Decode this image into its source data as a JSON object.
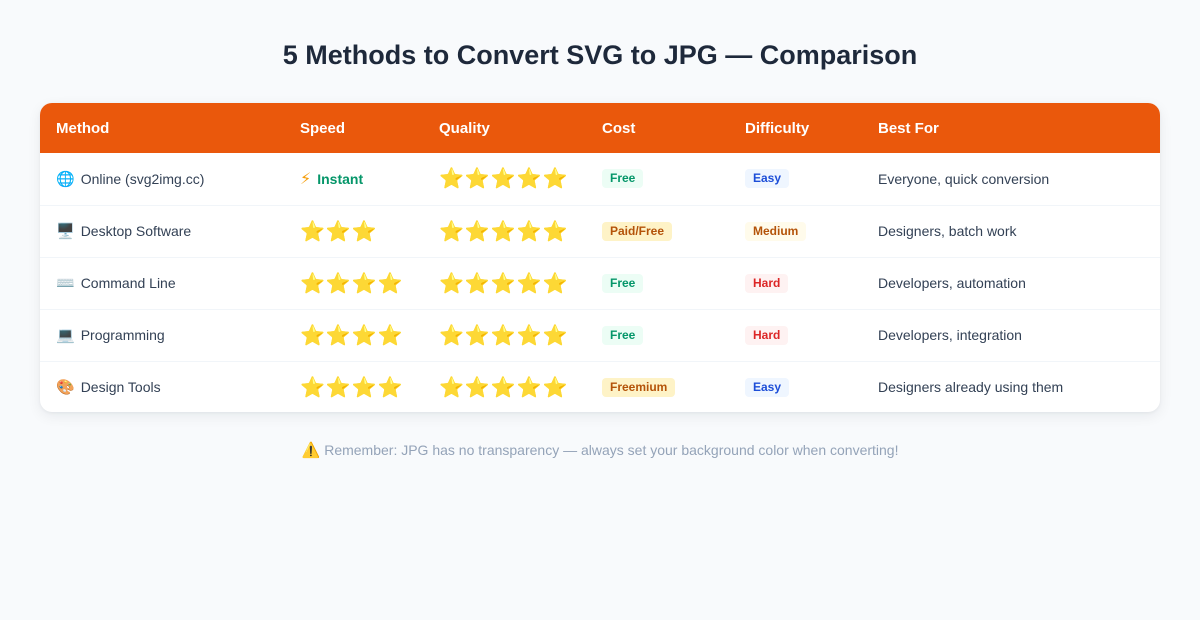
{
  "title": "5 Methods to Convert SVG to JPG — Comparison",
  "columns": [
    "Method",
    "Speed",
    "Quality",
    "Cost",
    "Difficulty",
    "Best For"
  ],
  "rows": [
    {
      "icon": "globe-icon",
      "icon_glyph": "🌐",
      "method": "Online (svg2img.cc)",
      "speed_text": "Instant",
      "speed_icon": "⚡",
      "speed_stars": "",
      "quality_stars": "⭐⭐⭐⭐⭐",
      "cost": "Free",
      "cost_color": "#059669",
      "difficulty": "Easy",
      "difficulty_color": "#1d4ed8",
      "best_for": "Everyone, quick conversion"
    },
    {
      "icon": "desktop-icon",
      "icon_glyph": "🖥️",
      "method": "Desktop Software",
      "speed_text": "",
      "speed_icon": "",
      "speed_stars": "⭐⭐⭐",
      "quality_stars": "⭐⭐⭐⭐⭐",
      "cost": "Paid/Free",
      "cost_color": "#b45309",
      "difficulty": "Medium",
      "difficulty_color": "#b45309",
      "best_for": "Designers, batch work"
    },
    {
      "icon": "keyboard-icon",
      "icon_glyph": "⌨️",
      "method": "Command Line",
      "speed_text": "",
      "speed_icon": "",
      "speed_stars": "⭐⭐⭐⭐",
      "quality_stars": "⭐⭐⭐⭐⭐",
      "cost": "Free",
      "cost_color": "#059669",
      "difficulty": "Hard",
      "difficulty_color": "#dc2626",
      "best_for": "Developers, automation"
    },
    {
      "icon": "laptop-icon",
      "icon_glyph": "💻",
      "method": "Programming",
      "speed_text": "",
      "speed_icon": "",
      "speed_stars": "⭐⭐⭐⭐",
      "quality_stars": "⭐⭐⭐⭐⭐",
      "cost": "Free",
      "cost_color": "#059669",
      "difficulty": "Hard",
      "difficulty_color": "#dc2626",
      "best_for": "Developers, integration"
    },
    {
      "icon": "palette-icon",
      "icon_glyph": "🎨",
      "method": "Design Tools",
      "speed_text": "",
      "speed_icon": "",
      "speed_stars": "⭐⭐⭐⭐",
      "quality_stars": "⭐⭐⭐⭐⭐",
      "cost": "Freemium",
      "cost_color": "#b45309",
      "difficulty": "Easy",
      "difficulty_color": "#1d4ed8",
      "best_for": "Designers already using them"
    }
  ],
  "footnote": {
    "icon": "warning-icon",
    "icon_glyph": "⚠️",
    "text": "Remember: JPG has no transparency — always set your background color when converting!"
  },
  "colors": {
    "header_bg": "#ea580c",
    "page_bg": "#f8fafc",
    "title": "#1e293b",
    "star": "#f5b800"
  }
}
